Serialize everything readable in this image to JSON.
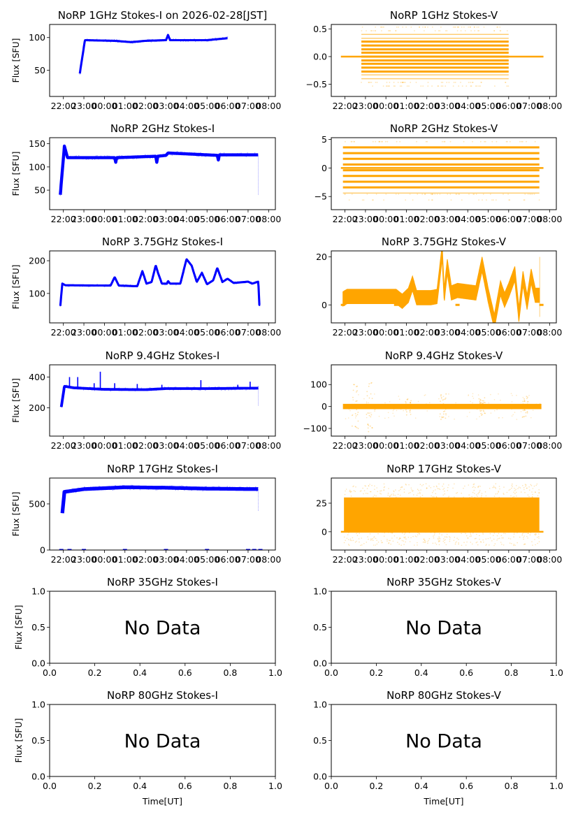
{
  "figure": {
    "date_label": "2026-02-28[JST]",
    "xlabel": "Time[UT]",
    "ylabel": "Flux [SFU]",
    "colors": {
      "stokes_i": "#0000ff",
      "stokes_v": "#ffa500",
      "axes": "#000000"
    }
  },
  "chart_data": [
    {
      "id": "1ghz-i",
      "type": "scatter",
      "title": "NoRP 1GHz Stokes-I on 2026-02-28[JST]",
      "ylabel": "Flux [SFU]",
      "xlabel": "",
      "xticks": [
        "22:00",
        "23:00",
        "00:00",
        "01:00",
        "02:00",
        "03:00",
        "04:00",
        "05:00",
        "06:00",
        "07:00",
        "08:00"
      ],
      "x_hours_range": [
        -2.67,
        8.33
      ],
      "ylim": [
        10,
        120
      ],
      "yticks": [
        50,
        100
      ],
      "series": {
        "kind": "I",
        "start": -1.2,
        "end": 6.0,
        "rise_from": 45,
        "level": 96,
        "knots": [
          [
            -1.2,
            45
          ],
          [
            -0.95,
            96
          ],
          [
            0.5,
            95
          ],
          [
            1.3,
            93
          ],
          [
            2.0,
            95
          ],
          [
            3.0,
            96
          ],
          [
            3.1,
            104
          ],
          [
            3.2,
            96
          ],
          [
            5.0,
            96
          ],
          [
            6.0,
            99
          ]
        ],
        "noise": 1.5,
        "spikes": []
      }
    },
    {
      "id": "1ghz-v",
      "type": "scatter",
      "title": "NoRP 1GHz Stokes-V",
      "ylabel": "",
      "xlabel": "",
      "xticks": [
        "22:00",
        "23:00",
        "00:00",
        "01:00",
        "02:00",
        "03:00",
        "04:00",
        "05:00",
        "06:00",
        "07:00",
        "08:00"
      ],
      "x_hours_range": [
        -2.67,
        8.33
      ],
      "ylim": [
        -0.72,
        0.58
      ],
      "yticks": [
        -0.5,
        0.0,
        0.5
      ],
      "series": {
        "kind": "Vbands",
        "start": -1.2,
        "end": 6.0,
        "zero_line": [
          -2.2,
          7.7
        ],
        "bands": [
          -0.4,
          -0.33,
          -0.27,
          -0.2,
          -0.13,
          -0.07,
          0.0,
          0.07,
          0.13,
          0.2,
          0.27,
          0.33,
          0.4
        ],
        "core": 0.3,
        "step": 0.066
      }
    },
    {
      "id": "2ghz-i",
      "type": "scatter",
      "title": "NoRP 2GHz Stokes-I",
      "ylabel": "Flux [SFU]",
      "xlabel": "",
      "xticks": [
        "22:00",
        "23:00",
        "00:00",
        "01:00",
        "02:00",
        "03:00",
        "04:00",
        "05:00",
        "06:00",
        "07:00",
        "08:00"
      ],
      "x_hours_range": [
        -2.67,
        8.33
      ],
      "ylim": [
        8,
        163
      ],
      "yticks": [
        50,
        100,
        150
      ],
      "series": {
        "kind": "I",
        "start": -2.15,
        "end": 7.5,
        "knots": [
          [
            -2.15,
            40
          ],
          [
            -1.95,
            145
          ],
          [
            -1.8,
            120
          ],
          [
            0.5,
            120
          ],
          [
            0.55,
            110
          ],
          [
            0.6,
            120
          ],
          [
            2.5,
            123
          ],
          [
            2.55,
            110
          ],
          [
            2.6,
            123
          ],
          [
            3.0,
            125
          ],
          [
            3.1,
            130
          ],
          [
            5.5,
            125
          ],
          [
            5.55,
            115
          ],
          [
            5.6,
            126
          ],
          [
            7.5,
            126
          ]
        ],
        "noise": 3,
        "drop_at_end": 40
      }
    },
    {
      "id": "2ghz-v",
      "type": "scatter",
      "title": "NoRP 2GHz Stokes-V",
      "ylabel": "",
      "xlabel": "",
      "xticks": [
        "22:00",
        "23:00",
        "00:00",
        "01:00",
        "02:00",
        "03:00",
        "04:00",
        "05:00",
        "06:00",
        "07:00",
        "08:00"
      ],
      "x_hours_range": [
        -2.67,
        8.33
      ],
      "ylim": [
        -7.3,
        5.3
      ],
      "yticks": [
        -5,
        0,
        5
      ],
      "series": {
        "kind": "Vbands",
        "start": -2.1,
        "end": 7.5,
        "zero_line": [
          -2.2,
          7.7
        ],
        "bands": [
          -4.4,
          -3.4,
          -2.4,
          -1.4,
          -0.4,
          0.6,
          1.6,
          2.6,
          3.6
        ],
        "core": 3.6,
        "step": 1.0
      }
    },
    {
      "id": "375ghz-i",
      "type": "scatter",
      "title": "NoRP 3.75GHz Stokes-I",
      "ylabel": "Flux [SFU]",
      "xlabel": "",
      "xticks": [
        "22:00",
        "23:00",
        "00:00",
        "01:00",
        "02:00",
        "03:00",
        "04:00",
        "05:00",
        "06:00",
        "07:00",
        "08:00"
      ],
      "x_hours_range": [
        -2.67,
        8.33
      ],
      "ylim": [
        10,
        230
      ],
      "yticks": [
        100,
        200
      ],
      "series": {
        "kind": "I",
        "start": -2.15,
        "end": 7.6,
        "knots": [
          [
            -2.15,
            62
          ],
          [
            -2.05,
            130
          ],
          [
            -1.9,
            125
          ],
          [
            0.3,
            124
          ],
          [
            0.5,
            150
          ],
          [
            0.7,
            124
          ],
          [
            1.6,
            122
          ],
          [
            1.85,
            168
          ],
          [
            2.05,
            130
          ],
          [
            2.3,
            135
          ],
          [
            2.5,
            186
          ],
          [
            2.6,
            165
          ],
          [
            2.8,
            130
          ],
          [
            3.05,
            130
          ],
          [
            3.1,
            138
          ],
          [
            3.2,
            130
          ],
          [
            3.7,
            130
          ],
          [
            4.0,
            205
          ],
          [
            4.25,
            185
          ],
          [
            4.5,
            135
          ],
          [
            4.75,
            163
          ],
          [
            5.0,
            128
          ],
          [
            5.3,
            140
          ],
          [
            5.5,
            178
          ],
          [
            5.75,
            135
          ],
          [
            6.0,
            145
          ],
          [
            6.3,
            132
          ],
          [
            7.0,
            136
          ],
          [
            7.2,
            130
          ],
          [
            7.5,
            136
          ],
          [
            7.55,
            65
          ],
          [
            7.6,
            65
          ]
        ],
        "noise": 3
      }
    },
    {
      "id": "375ghz-v",
      "type": "scatter",
      "title": "NoRP 3.75GHz Stokes-V",
      "ylabel": "",
      "xlabel": "",
      "xticks": [
        "22:00",
        "23:00",
        "00:00",
        "01:00",
        "02:00",
        "03:00",
        "04:00",
        "05:00",
        "06:00",
        "07:00",
        "08:00"
      ],
      "x_hours_range": [
        -2.67,
        8.33
      ],
      "ylim": [
        -7.5,
        22.5
      ],
      "yticks": [
        0,
        20
      ],
      "series": {
        "kind": "V",
        "start": -2.1,
        "end": 7.5,
        "knots": [
          [
            -2.1,
            2.5
          ],
          [
            -1.9,
            3.5
          ],
          [
            0.5,
            3.5
          ],
          [
            0.8,
            1.5
          ],
          [
            1.1,
            4
          ],
          [
            1.3,
            9
          ],
          [
            1.5,
            3
          ],
          [
            2.2,
            3
          ],
          [
            2.5,
            3.5
          ],
          [
            2.75,
            22
          ],
          [
            2.85,
            4
          ],
          [
            3.0,
            16
          ],
          [
            3.2,
            5
          ],
          [
            3.5,
            6
          ],
          [
            4.4,
            5
          ],
          [
            4.7,
            17
          ],
          [
            5.0,
            4
          ],
          [
            5.3,
            -7
          ],
          [
            5.6,
            7
          ],
          [
            5.8,
            2
          ],
          [
            6.0,
            6
          ],
          [
            6.3,
            13
          ],
          [
            6.5,
            -4
          ],
          [
            6.7,
            11
          ],
          [
            6.9,
            1
          ],
          [
            7.1,
            12
          ],
          [
            7.3,
            4
          ],
          [
            7.8,
            4
          ],
          [
            8.0,
            7
          ],
          [
            8.2,
            2
          ],
          [
            8.5,
            5
          ],
          [
            8.6,
            2
          ]
        ],
        "band": 3,
        "zero_marks": [
          -2.1,
          0.5,
          3.5,
          7.6
        ]
      }
    },
    {
      "id": "94ghz-i",
      "type": "scatter",
      "title": "NoRP 9.4GHz Stokes-I",
      "ylabel": "Flux [SFU]",
      "xlabel": "",
      "xticks": [
        "22:00",
        "23:00",
        "00:00",
        "01:00",
        "02:00",
        "03:00",
        "04:00",
        "05:00",
        "06:00",
        "07:00",
        "08:00"
      ],
      "x_hours_range": [
        -2.67,
        8.33
      ],
      "ylim": [
        15,
        480
      ],
      "yticks": [
        200,
        400
      ],
      "series": {
        "kind": "I",
        "start": -2.1,
        "end": 7.5,
        "knots": [
          [
            -2.1,
            205
          ],
          [
            -1.95,
            340
          ],
          [
            -1.5,
            330
          ],
          [
            0.0,
            320
          ],
          [
            2.0,
            318
          ],
          [
            3.0,
            325
          ],
          [
            5.0,
            325
          ],
          [
            7.5,
            328
          ]
        ],
        "noise": 8,
        "spikes": [
          [
            -1.7,
            400
          ],
          [
            -1.3,
            400
          ],
          [
            -0.5,
            360
          ],
          [
            -0.2,
            435
          ],
          [
            0.5,
            360
          ],
          [
            1.6,
            355
          ],
          [
            2.8,
            350
          ],
          [
            4.7,
            380
          ],
          [
            6.5,
            350
          ],
          [
            7.1,
            370
          ]
        ],
        "drop_at_end": 210
      }
    },
    {
      "id": "94ghz-v",
      "type": "scatter",
      "title": "NoRP 9.4GHz Stokes-V",
      "ylabel": "",
      "xlabel": "",
      "xticks": [
        "22:00",
        "23:00",
        "00:00",
        "01:00",
        "02:00",
        "03:00",
        "04:00",
        "05:00",
        "06:00",
        "07:00",
        "08:00"
      ],
      "x_hours_range": [
        -2.67,
        8.33
      ],
      "ylim": [
        -135,
        190
      ],
      "yticks": [
        -100,
        0,
        100
      ],
      "series": {
        "kind": "Vnoise",
        "start": -2.1,
        "end": 7.6,
        "center": 0,
        "band": 12,
        "bursts": [
          [
            -1.5,
            100
          ],
          [
            -0.8,
            120
          ],
          [
            1.1,
            40
          ],
          [
            2.8,
            60
          ],
          [
            4.7,
            40
          ],
          [
            6.8,
            50
          ]
        ]
      }
    },
    {
      "id": "17ghz-i",
      "type": "scatter",
      "title": "NoRP 17GHz Stokes-I",
      "ylabel": "Flux [SFU]",
      "xlabel": "",
      "xticks": [
        "22:00",
        "23:00",
        "00:00",
        "01:00",
        "02:00",
        "03:00",
        "04:00",
        "05:00",
        "06:00",
        "07:00",
        "08:00"
      ],
      "x_hours_range": [
        -2.67,
        8.33
      ],
      "ylim": [
        0,
        780
      ],
      "yticks": [
        0,
        500
      ],
      "series": {
        "kind": "I",
        "start": -2.05,
        "end": 7.5,
        "knots": [
          [
            -2.05,
            400
          ],
          [
            -1.95,
            630
          ],
          [
            -1.0,
            660
          ],
          [
            1.0,
            680
          ],
          [
            3.0,
            675
          ],
          [
            5.0,
            665
          ],
          [
            7.5,
            660
          ]
        ],
        "noise": 18,
        "drop_at_end": 420,
        "zero_marks": [
          -2.1,
          -1.7,
          -1.0,
          1.0,
          3.0,
          5.0,
          7.0,
          7.3,
          7.6
        ]
      }
    },
    {
      "id": "17ghz-v",
      "type": "scatter",
      "title": "NoRP 17GHz Stokes-V",
      "ylabel": "",
      "xlabel": "",
      "xticks": [
        "22:00",
        "23:00",
        "00:00",
        "01:00",
        "02:00",
        "03:00",
        "04:00",
        "05:00",
        "06:00",
        "07:00",
        "08:00"
      ],
      "x_hours_range": [
        -2.67,
        8.33
      ],
      "ylim": [
        -16,
        47
      ],
      "yticks": [
        0,
        25
      ],
      "series": {
        "kind": "Vblock",
        "start": -2.05,
        "end": 7.5,
        "lo": 0,
        "hi": 30,
        "spread": 12
      }
    },
    {
      "id": "35ghz-i",
      "type": "empty",
      "title": "NoRP 35GHz Stokes-I",
      "ylabel": "Flux [SFU]",
      "xlabel": "",
      "message": "No Data",
      "xlim": [
        0,
        1
      ],
      "ylim": [
        0,
        1
      ],
      "xticks": [
        "0.0",
        "0.2",
        "0.4",
        "0.6",
        "0.8",
        "1.0"
      ],
      "yticks": [
        "0.0",
        "0.5",
        "1.0"
      ]
    },
    {
      "id": "35ghz-v",
      "type": "empty",
      "title": "NoRP 35GHz Stokes-V",
      "ylabel": "",
      "xlabel": "",
      "message": "No Data",
      "xlim": [
        0,
        1
      ],
      "ylim": [
        0,
        1
      ],
      "xticks": [
        "0.0",
        "0.2",
        "0.4",
        "0.6",
        "0.8",
        "1.0"
      ],
      "yticks": [
        "0.0",
        "0.5",
        "1.0"
      ]
    },
    {
      "id": "80ghz-i",
      "type": "empty",
      "title": "NoRP 80GHz Stokes-I",
      "ylabel": "Flux [SFU]",
      "xlabel": "Time[UT]",
      "message": "No Data",
      "xlim": [
        0,
        1
      ],
      "ylim": [
        0,
        1
      ],
      "xticks": [
        "0.0",
        "0.2",
        "0.4",
        "0.6",
        "0.8",
        "1.0"
      ],
      "yticks": [
        "0.0",
        "0.5",
        "1.0"
      ]
    },
    {
      "id": "80ghz-v",
      "type": "empty",
      "title": "NoRP 80GHz Stokes-V",
      "ylabel": "",
      "xlabel": "Time[UT]",
      "message": "No Data",
      "xlim": [
        0,
        1
      ],
      "ylim": [
        0,
        1
      ],
      "xticks": [
        "0.0",
        "0.2",
        "0.4",
        "0.6",
        "0.8",
        "1.0"
      ],
      "yticks": [
        "0.0",
        "0.5",
        "1.0"
      ]
    }
  ]
}
